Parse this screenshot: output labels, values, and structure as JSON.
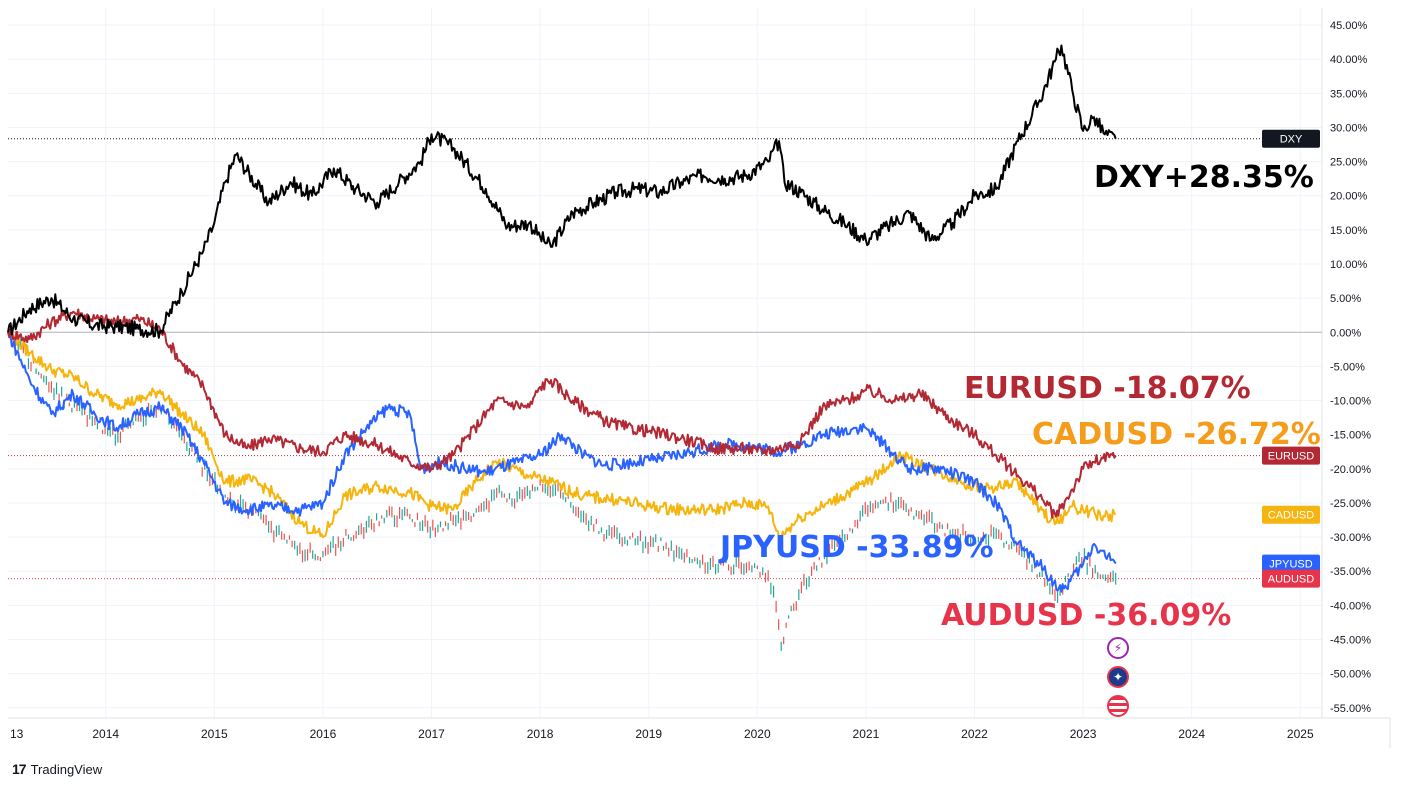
{
  "chart_data": {
    "type": "line",
    "x_axis_ticks": [
      "13",
      "2014",
      "2015",
      "2016",
      "2017",
      "2018",
      "2019",
      "2020",
      "2021",
      "2022",
      "2023",
      "2024",
      "2025"
    ],
    "x_range": [
      2013.1,
      2025.2
    ],
    "y_axis_ticks": [
      "45.00%",
      "40.00%",
      "35.00%",
      "30.00%",
      "25.00%",
      "20.00%",
      "15.00%",
      "10.00%",
      "5.00%",
      "0.00%",
      "-5.00%",
      "-10.00%",
      "-15.00%",
      "-20.00%",
      "-25.00%",
      "-30.00%",
      "-35.00%",
      "-40.00%",
      "-45.00%",
      "-50.00%",
      "-55.00%"
    ],
    "y_range": [
      -56.5,
      47.5
    ],
    "grid": true,
    "scale": "percent change",
    "series": [
      {
        "name": "DXY",
        "label": "DXY+28.35%",
        "last_value": 28.35,
        "color": "#000000",
        "x": [
          2013.1,
          2013.3,
          2013.5,
          2013.7,
          2013.9,
          2014.1,
          2014.3,
          2014.5,
          2014.7,
          2014.9,
          2015.0,
          2015.1,
          2015.2,
          2015.5,
          2015.7,
          2015.9,
          2016.1,
          2016.3,
          2016.5,
          2016.7,
          2016.9,
          2017.0,
          2017.2,
          2017.5,
          2017.7,
          2017.9,
          2018.0,
          2018.1,
          2018.3,
          2018.5,
          2018.7,
          2018.9,
          2019.1,
          2019.3,
          2019.5,
          2019.7,
          2019.9,
          2020.1,
          2020.2,
          2020.25,
          2020.4,
          2020.6,
          2020.8,
          2021.0,
          2021.2,
          2021.4,
          2021.6,
          2021.8,
          2022.0,
          2022.2,
          2022.4,
          2022.6,
          2022.75,
          2022.8,
          2022.9,
          2023.0,
          2023.1,
          2023.2,
          2023.3
        ],
        "values": [
          0.0,
          3.5,
          5.0,
          2.0,
          1.0,
          0.8,
          0.5,
          0.2,
          6.0,
          12.0,
          16.0,
          22.0,
          26.0,
          19.0,
          22.0,
          20.0,
          24.0,
          21.0,
          19.0,
          22.0,
          25.0,
          29.0,
          27.0,
          21.0,
          15.5,
          16.0,
          14.0,
          12.5,
          17.5,
          19.0,
          20.5,
          21.0,
          20.5,
          22.0,
          23.0,
          22.5,
          23.0,
          25.0,
          28.0,
          22.0,
          20.5,
          18.0,
          16.0,
          13.5,
          15.5,
          17.5,
          13.5,
          16.0,
          20.0,
          21.0,
          28.0,
          34.0,
          40.0,
          42.0,
          35.5,
          29.5,
          31.5,
          29.0,
          28.35
        ]
      },
      {
        "name": "EURUSD",
        "label": "EURUSD -18.07%",
        "last_value": -18.07,
        "color": "#b22833",
        "x": [
          2013.1,
          2013.3,
          2013.5,
          2013.7,
          2013.9,
          2014.1,
          2014.3,
          2014.5,
          2014.7,
          2014.9,
          2015.1,
          2015.3,
          2015.5,
          2015.8,
          2016.0,
          2016.2,
          2016.5,
          2016.8,
          2017.0,
          2017.2,
          2017.4,
          2017.6,
          2017.9,
          2018.0,
          2018.1,
          2018.3,
          2018.6,
          2018.8,
          2019.0,
          2019.3,
          2019.6,
          2019.9,
          2020.0,
          2020.2,
          2020.4,
          2020.6,
          2020.8,
          2020.9,
          2021.0,
          2021.3,
          2021.5,
          2021.8,
          2022.0,
          2022.2,
          2022.4,
          2022.6,
          2022.75,
          2022.9,
          2023.0,
          2023.1,
          2023.3
        ],
        "values": [
          0.0,
          -1.0,
          1.5,
          3.0,
          2.0,
          1.5,
          2.0,
          0.5,
          -4.5,
          -8.0,
          -15.0,
          -17.0,
          -15.5,
          -17.0,
          -17.5,
          -15.0,
          -16.5,
          -19.0,
          -20.0,
          -18.0,
          -14.0,
          -10.0,
          -11.0,
          -8.0,
          -7.0,
          -10.0,
          -13.0,
          -14.0,
          -14.5,
          -15.5,
          -17.0,
          -17.0,
          -17.5,
          -17.0,
          -16.0,
          -11.0,
          -10.0,
          -9.5,
          -8.5,
          -10.0,
          -9.0,
          -13.0,
          -15.0,
          -18.0,
          -21.0,
          -24.0,
          -27.0,
          -23.0,
          -20.0,
          -19.0,
          -18.07
        ]
      },
      {
        "name": "CADUSD",
        "label": "CADUSD -26.72%",
        "last_value": -26.72,
        "color": "#f5b50e",
        "x": [
          2013.1,
          2013.3,
          2013.5,
          2013.7,
          2013.9,
          2014.1,
          2014.3,
          2014.5,
          2014.7,
          2014.9,
          2015.1,
          2015.3,
          2015.5,
          2015.8,
          2016.0,
          2016.2,
          2016.5,
          2016.8,
          2017.0,
          2017.2,
          2017.4,
          2017.6,
          2017.9,
          2018.1,
          2018.4,
          2018.7,
          2019.0,
          2019.3,
          2019.6,
          2019.9,
          2020.1,
          2020.2,
          2020.4,
          2020.6,
          2020.9,
          2021.1,
          2021.3,
          2021.6,
          2021.9,
          2022.1,
          2022.4,
          2022.6,
          2022.75,
          2022.9,
          2023.0,
          2023.2,
          2023.3
        ],
        "values": [
          0.0,
          -3.0,
          -5.5,
          -6.5,
          -9.0,
          -10.5,
          -10.0,
          -8.5,
          -12.0,
          -15.0,
          -22.0,
          -21.5,
          -23.0,
          -28.0,
          -30.0,
          -24.0,
          -22.5,
          -23.5,
          -25.5,
          -26.0,
          -22.0,
          -19.0,
          -21.0,
          -22.0,
          -24.0,
          -24.5,
          -25.5,
          -26.0,
          -26.0,
          -25.0,
          -25.5,
          -30.0,
          -27.0,
          -25.5,
          -23.0,
          -21.0,
          -18.0,
          -20.0,
          -22.0,
          -23.0,
          -22.0,
          -26.0,
          -28.0,
          -25.5,
          -26.0,
          -27.0,
          -26.72
        ]
      },
      {
        "name": "JPYUSD",
        "label": "JPYUSD -33.89%",
        "last_value": -33.89,
        "color": "#2962ff",
        "x": [
          2013.1,
          2013.3,
          2013.5,
          2013.7,
          2013.9,
          2014.1,
          2014.3,
          2014.5,
          2014.7,
          2014.9,
          2015.1,
          2015.3,
          2015.5,
          2015.8,
          2016.0,
          2016.2,
          2016.4,
          2016.6,
          2016.8,
          2016.9,
          2017.1,
          2017.3,
          2017.5,
          2017.8,
          2018.0,
          2018.2,
          2018.4,
          2018.6,
          2018.9,
          2019.1,
          2019.4,
          2019.7,
          2019.9,
          2020.2,
          2020.4,
          2020.6,
          2020.9,
          2021.0,
          2021.2,
          2021.4,
          2021.7,
          2022.0,
          2022.2,
          2022.4,
          2022.6,
          2022.8,
          2023.0,
          2023.1,
          2023.3
        ],
        "values": [
          0.0,
          -7.0,
          -12.0,
          -9.0,
          -12.0,
          -14.0,
          -12.0,
          -11.0,
          -14.0,
          -19.0,
          -25.0,
          -26.0,
          -25.5,
          -26.0,
          -25.0,
          -18.0,
          -14.0,
          -11.0,
          -12.0,
          -20.0,
          -19.0,
          -20.0,
          -20.5,
          -19.0,
          -18.0,
          -15.0,
          -18.0,
          -19.5,
          -19.0,
          -18.5,
          -17.5,
          -16.5,
          -16.5,
          -17.5,
          -16.5,
          -15.0,
          -14.0,
          -14.0,
          -17.0,
          -20.0,
          -20.0,
          -22.0,
          -25.0,
          -31.0,
          -34.0,
          -38.0,
          -34.0,
          -31.0,
          -33.89
        ]
      },
      {
        "name": "AUDUSD",
        "label": "AUDUSD -36.09%",
        "last_value": -36.09,
        "color": "#e8344a",
        "style": "bars",
        "x": [
          2013.1,
          2013.3,
          2013.5,
          2013.7,
          2013.9,
          2014.1,
          2014.3,
          2014.5,
          2014.7,
          2014.9,
          2015.1,
          2015.3,
          2015.5,
          2015.8,
          2016.0,
          2016.2,
          2016.4,
          2016.6,
          2016.8,
          2017.0,
          2017.2,
          2017.4,
          2017.6,
          2017.8,
          2018.0,
          2018.2,
          2018.4,
          2018.6,
          2018.9,
          2019.1,
          2019.4,
          2019.7,
          2019.9,
          2020.05,
          2020.15,
          2020.22,
          2020.3,
          2020.5,
          2020.7,
          2020.9,
          2021.1,
          2021.3,
          2021.5,
          2021.8,
          2022.0,
          2022.2,
          2022.4,
          2022.6,
          2022.8,
          2022.9,
          2023.0,
          2023.1,
          2023.3
        ],
        "values": [
          0.0,
          -4.0,
          -8.0,
          -11.0,
          -13.0,
          -15.0,
          -12.5,
          -11.0,
          -15.0,
          -20.0,
          -24.0,
          -26.0,
          -28.5,
          -32.0,
          -32.5,
          -30.0,
          -28.5,
          -27.0,
          -27.0,
          -29.0,
          -27.5,
          -27.0,
          -23.5,
          -24.5,
          -22.0,
          -23.0,
          -27.0,
          -29.5,
          -30.5,
          -31.0,
          -33.5,
          -34.0,
          -34.5,
          -35.0,
          -38.0,
          -46.0,
          -41.0,
          -35.0,
          -31.5,
          -28.0,
          -24.5,
          -25.0,
          -27.0,
          -29.5,
          -30.0,
          -29.5,
          -32.0,
          -35.5,
          -38.5,
          -34.5,
          -33.0,
          -35.0,
          -36.09
        ]
      }
    ],
    "price_tags": [
      {
        "label": "DXY",
        "value": 28.35,
        "color": "#131722"
      },
      {
        "label": "EURUSD",
        "value": -18.07,
        "color": "#b22833"
      },
      {
        "label": "CADUSD",
        "value": -26.72,
        "color": "#f5b50e"
      },
      {
        "label": "JPYUSD",
        "value": -33.89,
        "color": "#2962ff"
      },
      {
        "label": "AUDUSD",
        "value": -36.09,
        "color": "#e8344a"
      }
    ],
    "annotations": [
      {
        "text": "DXY+28.35%",
        "color": "#000000"
      },
      {
        "text": "EURUSD -18.07%",
        "color": "#b22833"
      },
      {
        "text": "CADUSD -26.72%",
        "color": "#f59c1a"
      },
      {
        "text": "JPYUSD -33.89%",
        "color": "#2962ff"
      },
      {
        "text": "AUDUSD -36.09%",
        "color": "#e8344a"
      }
    ]
  },
  "branding": {
    "label": "TradingView"
  },
  "event_icons": [
    "lightning-icon",
    "australia-flag-icon",
    "us-flag-icon"
  ]
}
